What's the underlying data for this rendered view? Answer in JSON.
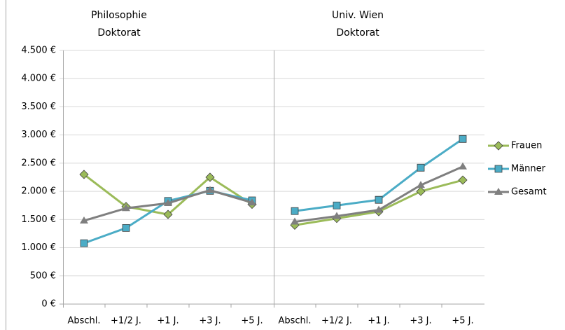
{
  "chart_data": {
    "type": "line",
    "ylim": [
      0,
      4500
    ],
    "yticks": [
      {
        "value": 0,
        "label": "0 €"
      },
      {
        "value": 500,
        "label": "500 €"
      },
      {
        "value": 1000,
        "label": "1.000 €"
      },
      {
        "value": 1500,
        "label": "1.500 €"
      },
      {
        "value": 2000,
        "label": "2.000 €"
      },
      {
        "value": 2500,
        "label": "2.500 €"
      },
      {
        "value": 3000,
        "label": "3.000 €"
      },
      {
        "value": 3500,
        "label": "3.500 €"
      },
      {
        "value": 4000,
        "label": "4.000 €"
      },
      {
        "value": 4500,
        "label": "4.500 €"
      }
    ],
    "grid": true,
    "legend": "right",
    "series": [
      {
        "name": "Frauen",
        "color": "#9bbb59",
        "marker": "diamond"
      },
      {
        "name": "Männer",
        "color": "#4bacc6",
        "marker": "square"
      },
      {
        "name": "Gesamt",
        "color": "#7f7f7f",
        "marker": "triangle"
      }
    ],
    "panels": [
      {
        "title": [
          "Philosophie",
          "Doktorat"
        ],
        "categories": [
          "Abschl.",
          "+1/2 J.",
          "+1 J.",
          "+3 J.",
          "+5 J."
        ],
        "values": [
          [
            2300,
            1730,
            1590,
            2250,
            1770
          ],
          [
            1080,
            1350,
            1830,
            2010,
            1840
          ],
          [
            1480,
            1700,
            1790,
            2020,
            1800
          ]
        ]
      },
      {
        "title": [
          "Univ. Wien",
          "Doktorat"
        ],
        "categories": [
          "Abschl.",
          "+1/2 J.",
          "+1 J.",
          "+3 J.",
          "+5 J."
        ],
        "values": [
          [
            1400,
            1520,
            1640,
            2000,
            2200
          ],
          [
            1650,
            1750,
            1850,
            2420,
            2930
          ],
          [
            1460,
            1560,
            1670,
            2110,
            2440
          ]
        ]
      }
    ]
  }
}
